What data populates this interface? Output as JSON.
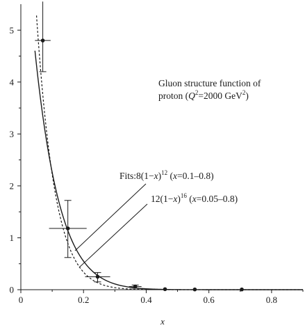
{
  "chart_data": {
    "type": "scatter",
    "title": "",
    "xlabel": "x",
    "ylabel": "",
    "xlim": [
      0,
      0.9
    ],
    "ylim": [
      0,
      5.5
    ],
    "x_ticks": [
      "0",
      "0.2",
      "0.4",
      "0.6",
      "0.8"
    ],
    "x_tick_values": [
      0,
      0.2,
      0.4,
      0.6,
      0.8
    ],
    "y_ticks": [
      "0",
      "1",
      "2",
      "3",
      "4",
      "5"
    ],
    "y_tick_values": [
      0,
      1,
      2,
      3,
      4,
      5
    ],
    "grid": false,
    "annotation": {
      "line1": "Gluon structure function of",
      "line2_prefix": "proton (",
      "line2_Q": "Q",
      "line2_sup": "2",
      "line2_mid": "=2000 GeV",
      "line2_sup2": "2",
      "line2_suffix": ")"
    },
    "fit_labels": [
      {
        "prefix": "Fits:8(1−",
        "var": "x",
        "mid": ")",
        "power": "12",
        "range_open": " (",
        "range_var": "x",
        "range": "=0.1–0.8)"
      },
      {
        "prefix": "12(1−",
        "var": "x",
        "mid": ")",
        "power": "16",
        "range_open": " (",
        "range_var": "x",
        "range": "=0.05–0.8)"
      }
    ],
    "fits": [
      {
        "name": "8(1-x)^12",
        "coef": 8,
        "power": 12,
        "x_from": 0.045,
        "x_to": 0.9,
        "style": "solid"
      },
      {
        "name": "12(1-x)^16",
        "coef": 12,
        "power": 16,
        "x_from": 0.05,
        "x_to": 0.9,
        "style": "dashed"
      }
    ],
    "points": [
      {
        "x": 0.07,
        "y": 4.8,
        "xerr": 0.025,
        "y_low": 4.2,
        "y_high": 5.55
      },
      {
        "x": 0.15,
        "y": 1.18,
        "xerr": 0.06,
        "y_low": 0.62,
        "y_high": 1.72
      },
      {
        "x": 0.245,
        "y": 0.25,
        "xerr": 0.04,
        "y_low": 0.15,
        "y_high": 0.33
      },
      {
        "x": 0.365,
        "y": 0.06,
        "xerr": 0.02,
        "y_low": 0.03,
        "y_high": 0.09
      },
      {
        "x": 0.46,
        "y": 0.01,
        "xerr": 0,
        "y_low": 0.01,
        "y_high": 0.01
      },
      {
        "x": 0.555,
        "y": 0.005,
        "xerr": 0,
        "y_low": 0.005,
        "y_high": 0.005
      },
      {
        "x": 0.705,
        "y": 0.005,
        "xerr": 0,
        "y_low": 0.005,
        "y_high": 0.005
      }
    ]
  }
}
